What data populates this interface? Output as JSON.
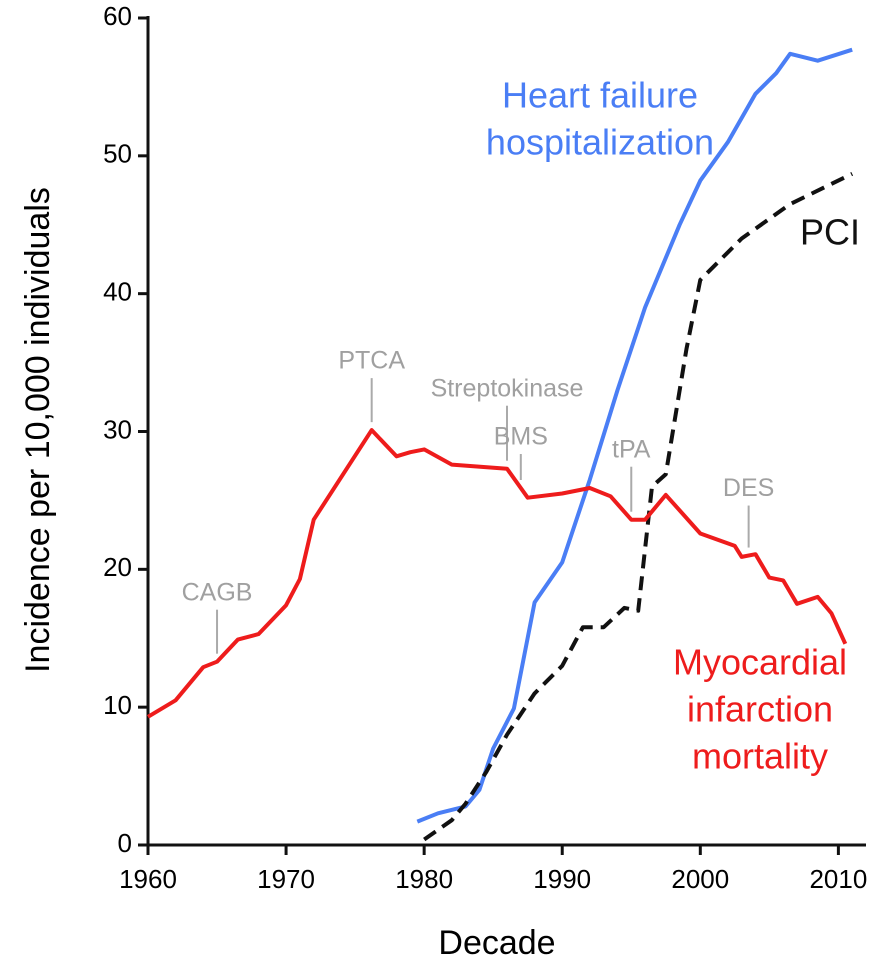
{
  "chart_data": {
    "type": "line",
    "xlabel": "Decade",
    "ylabel": "Incidence per 10,000 individuals",
    "xlim": [
      1960,
      2012
    ],
    "xticks": [
      1960,
      1970,
      1980,
      1990,
      2000,
      2010
    ],
    "ylim": [
      0,
      60
    ],
    "yticks": [
      0,
      10,
      20,
      30,
      40,
      50,
      60
    ],
    "series": [
      {
        "name": [
          "Heart failure",
          "hospitalization"
        ],
        "color": "#4a7ef5",
        "dash": false,
        "x": [
          1979.5,
          1981,
          1983,
          1984,
          1985,
          1986.5,
          1988,
          1990,
          1992,
          1994,
          1996,
          1998.5,
          2000,
          2002,
          2004,
          2005.5,
          2006.5,
          2008.5,
          2011
        ],
        "values": [
          1.7,
          2.3,
          2.8,
          4.0,
          7.0,
          9.9,
          17.6,
          20.5,
          26.5,
          33,
          39,
          45,
          48.2,
          51,
          54.5,
          56,
          57.4,
          56.9,
          57.7
        ]
      },
      {
        "name": [
          "PCI"
        ],
        "color": "#111111",
        "dash": true,
        "x": [
          1980,
          1982,
          1983,
          1984.5,
          1986,
          1988,
          1990,
          1991.5,
          1993,
          1994.5,
          1995.5,
          1996.5,
          1997.5,
          1999,
          2000,
          2003,
          2006.5,
          2011
        ],
        "values": [
          0.4,
          1.8,
          3,
          5.3,
          8,
          11,
          13,
          15.8,
          15.8,
          17.2,
          17,
          26,
          26.9,
          36,
          41,
          44,
          46.5,
          48.7
        ]
      },
      {
        "name": [
          "Myocardial",
          "infarction",
          "mortality"
        ],
        "color": "#ee1c1c",
        "dash": false,
        "x": [
          1960,
          1962,
          1964,
          1965,
          1966.5,
          1968,
          1970,
          1971,
          1972,
          1976.2,
          1978,
          1979,
          1980,
          1982,
          1986,
          1987.5,
          1990,
          1992,
          1993.5,
          1995,
          1996,
          1997.5,
          2000,
          2002.5,
          2003,
          2004,
          2005,
          2006,
          2007,
          2008.5,
          2009.5,
          2010.5
        ],
        "values": [
          9.3,
          10.5,
          12.9,
          13.3,
          14.9,
          15.3,
          17.4,
          19.3,
          23.6,
          30.1,
          28.2,
          28.5,
          28.7,
          27.6,
          27.3,
          25.2,
          25.5,
          25.9,
          25.3,
          23.6,
          23.6,
          25.4,
          22.6,
          21.7,
          20.9,
          21.1,
          19.4,
          19.2,
          17.5,
          18.0,
          16.8,
          14.6
        ]
      }
    ],
    "annotations": [
      {
        "text": "CAGB",
        "x": 1965
      },
      {
        "text": "PTCA",
        "x": 1976.2
      },
      {
        "text": "Streptokinase",
        "x": 1986
      },
      {
        "text": "BMS",
        "x": 1987
      },
      {
        "text": "tPA",
        "x": 1995
      },
      {
        "text": "DES",
        "x": 2003.5
      }
    ]
  }
}
